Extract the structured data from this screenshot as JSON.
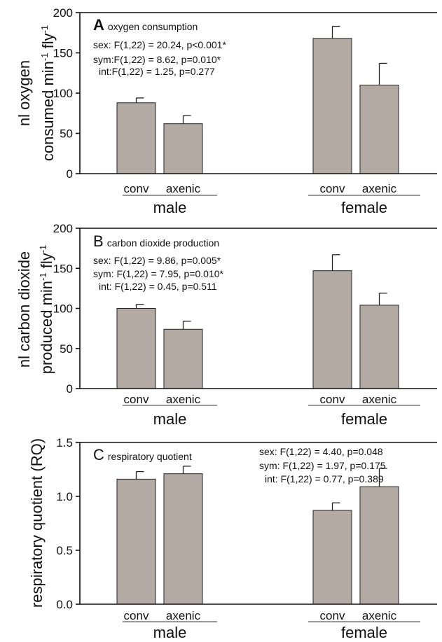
{
  "chart_data": [
    {
      "type": "bar",
      "letter": "A",
      "title": "oxygen consumption",
      "ylabel_lines": [
        "nl oxygen",
        "consumed min",
        "-1",
        " fly",
        "-1"
      ],
      "ylim": [
        0,
        200
      ],
      "yticks": [
        "0",
        "50",
        "100",
        "150",
        "200"
      ],
      "categories": [
        "conv",
        "axenic",
        "conv",
        "axenic"
      ],
      "groups": [
        "male",
        "female"
      ],
      "values": [
        88,
        62,
        168,
        110
      ],
      "errors": [
        6,
        10,
        15,
        27
      ],
      "stats": [
        "sex: F(1,22) =  20.24, p<0.001*",
        "sym:F(1,22) = 8.62, p=0.010*",
        "int:F(1,22) = 1.25, p=0.277"
      ]
    },
    {
      "type": "bar",
      "letter": "B",
      "title": "carbon dioxide production",
      "ylabel_lines": [
        "nl carbon dioxide",
        "produced min",
        "-1",
        " fly",
        "-1"
      ],
      "ylim": [
        0,
        200
      ],
      "yticks": [
        "0",
        "50",
        "100",
        "150",
        "200"
      ],
      "categories": [
        "conv",
        "axenic",
        "conv",
        "axenic"
      ],
      "groups": [
        "male",
        "female"
      ],
      "values": [
        100,
        74,
        147,
        104
      ],
      "errors": [
        5,
        10,
        20,
        15
      ],
      "stats": [
        "sex: F(1,22) = 9.86, p=0.005*",
        "sym: F(1,22) = 7.95, p=0.010*",
        "int: F(1,22) = 0.45, p=0.511"
      ]
    },
    {
      "type": "bar",
      "letter": "C",
      "title": "respiratory quotient",
      "ylabel_lines": [
        "respiratory quotient (RQ)"
      ],
      "ylim": [
        0,
        1.5
      ],
      "yticks": [
        "0.0",
        "0.5",
        "1.0",
        "1.5"
      ],
      "categories": [
        "conv",
        "axenic",
        "conv",
        "axenic"
      ],
      "groups": [
        "male",
        "female"
      ],
      "values": [
        1.16,
        1.21,
        0.87,
        1.09
      ],
      "errors": [
        0.07,
        0.07,
        0.07,
        0.17
      ],
      "stats": [
        "sex:  F(1,22) = 4.40, p=0.048",
        "sym: F(1,22) = 1.97, p=0.175",
        "int: F(1,22) = 0.77, p=0.389"
      ]
    }
  ]
}
